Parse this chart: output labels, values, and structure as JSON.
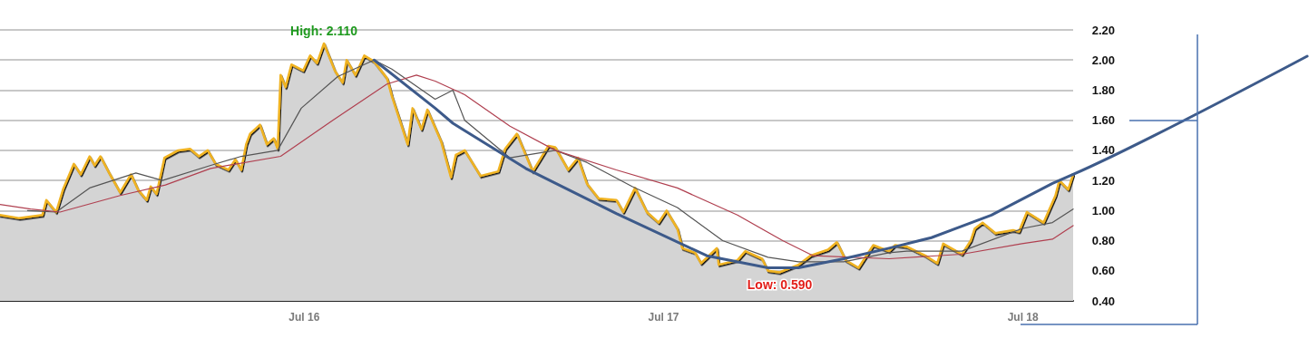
{
  "chart_data": {
    "type": "line",
    "xlim": [
      "2015-08-27",
      "2018-08-21"
    ],
    "xticks": [
      {
        "value": "2016-07-01",
        "label": "Jul 16"
      },
      {
        "value": "2017-07-01",
        "label": "Jul 17"
      },
      {
        "value": "2018-07-01",
        "label": "Jul 18"
      }
    ],
    "ylim": [
      0.4,
      2.2
    ],
    "yticks": [
      {
        "value": 0.4,
        "label": "0.40"
      },
      {
        "value": 0.6,
        "label": "0.60"
      },
      {
        "value": 0.8,
        "label": "0.80"
      },
      {
        "value": 1.0,
        "label": "1.00"
      },
      {
        "value": 1.2,
        "label": "1.20"
      },
      {
        "value": 1.4,
        "label": "1.40"
      },
      {
        "value": 1.6,
        "label": "1.60"
      },
      {
        "value": 1.8,
        "label": "1.80"
      },
      {
        "value": 2.0,
        "label": "2.00"
      },
      {
        "value": 2.2,
        "label": "2.20"
      }
    ],
    "grid": "y",
    "marker": "none",
    "line_style": "solid",
    "annotations": [
      {
        "text": "High: 2.110",
        "x": "2016-07-21",
        "y": 2.11
      },
      {
        "text": "Low: 0.590",
        "x": "2017-10-27",
        "y": 0.59
      }
    ],
    "series": [
      {
        "type": "area",
        "color": "#f0b323",
        "x": [
          "2015-08-27",
          "2015-09-15",
          "2015-10-09",
          "2015-10-13",
          "2015-10-23",
          "2015-10-30",
          "2015-11-10",
          "2015-11-17",
          "2015-11-26",
          "2015-12-01",
          "2015-12-07",
          "2015-12-15",
          "2015-12-27",
          "2016-01-07",
          "2016-01-14",
          "2016-01-23",
          "2016-01-27",
          "2016-02-02",
          "2016-02-10",
          "2016-02-24",
          "2016-03-07",
          "2016-03-16",
          "2016-03-25",
          "2016-04-02",
          "2016-04-15",
          "2016-04-22",
          "2016-04-28",
          "2016-05-03",
          "2016-05-07",
          "2016-05-17",
          "2016-05-24",
          "2016-05-31",
          "2016-06-04",
          "2016-06-07",
          "2016-06-12",
          "2016-06-18",
          "2016-06-30",
          "2016-07-07",
          "2016-07-14",
          "2016-07-21",
          "2016-08-01",
          "2016-08-09",
          "2016-08-13",
          "2016-08-22",
          "2016-08-31",
          "2016-09-10",
          "2016-09-23",
          "2016-09-28",
          "2016-10-14",
          "2016-10-19",
          "2016-10-28",
          "2016-11-03",
          "2016-11-17",
          "2016-11-27",
          "2016-12-02",
          "2016-12-11",
          "2016-12-27",
          "2017-01-14",
          "2017-01-21",
          "2017-02-02",
          "2017-02-18",
          "2017-03-06",
          "2017-03-13",
          "2017-03-26",
          "2017-04-05",
          "2017-04-14",
          "2017-04-26",
          "2017-05-14",
          "2017-05-21",
          "2017-06-02",
          "2017-06-14",
          "2017-06-26",
          "2017-07-04",
          "2017-07-15",
          "2017-07-20",
          "2017-08-02",
          "2017-08-08",
          "2017-08-24",
          "2017-08-26",
          "2017-09-14",
          "2017-09-22",
          "2017-10-09",
          "2017-10-15",
          "2017-10-27",
          "2017-11-15",
          "2017-11-27",
          "2017-12-15",
          "2017-12-24",
          "2018-01-02",
          "2018-01-15",
          "2018-01-30",
          "2018-02-15",
          "2018-02-21",
          "2018-03-05",
          "2018-03-24",
          "2018-04-05",
          "2018-04-11",
          "2018-04-30",
          "2018-05-09",
          "2018-05-13",
          "2018-05-21",
          "2018-06-03",
          "2018-06-21",
          "2018-06-27",
          "2018-07-05",
          "2018-07-22",
          "2018-08-03",
          "2018-08-07",
          "2018-08-16",
          "2018-08-21"
        ],
        "values": [
          0.97,
          0.95,
          0.97,
          1.07,
          0.99,
          1.14,
          1.31,
          1.24,
          1.36,
          1.3,
          1.36,
          1.26,
          1.12,
          1.24,
          1.14,
          1.07,
          1.16,
          1.11,
          1.35,
          1.4,
          1.41,
          1.36,
          1.4,
          1.31,
          1.27,
          1.34,
          1.27,
          1.44,
          1.51,
          1.57,
          1.44,
          1.48,
          1.41,
          1.9,
          1.82,
          1.97,
          1.93,
          2.03,
          1.98,
          2.11,
          1.93,
          1.85,
          2.0,
          1.9,
          2.03,
          1.99,
          1.88,
          1.76,
          1.44,
          1.68,
          1.54,
          1.67,
          1.46,
          1.22,
          1.37,
          1.4,
          1.23,
          1.26,
          1.41,
          1.51,
          1.26,
          1.43,
          1.42,
          1.27,
          1.35,
          1.18,
          1.08,
          1.07,
          0.99,
          1.15,
          0.99,
          0.92,
          1.0,
          0.88,
          0.75,
          0.72,
          0.65,
          0.75,
          0.64,
          0.67,
          0.73,
          0.68,
          0.6,
          0.59,
          0.64,
          0.7,
          0.74,
          0.79,
          0.67,
          0.62,
          0.77,
          0.73,
          0.77,
          0.76,
          0.7,
          0.65,
          0.78,
          0.71,
          0.8,
          0.88,
          0.92,
          0.85,
          0.87,
          0.86,
          0.99,
          0.92,
          1.1,
          1.2,
          1.14,
          1.24
        ]
      },
      {
        "color": "#555555",
        "x": [
          "2015-09-24",
          "2015-10-23",
          "2015-11-26",
          "2016-01-12",
          "2016-02-08",
          "2016-03-28",
          "2016-04-28",
          "2016-06-04",
          "2016-06-28",
          "2016-08-04",
          "2016-09-10",
          "2016-09-28",
          "2016-11-11",
          "2016-11-29",
          "2016-12-11",
          "2017-01-26",
          "2017-03-13",
          "2017-04-14",
          "2017-05-30",
          "2017-07-15",
          "2017-08-30",
          "2017-10-15",
          "2017-11-15",
          "2017-12-31",
          "2018-02-15",
          "2018-03-05",
          "2018-04-30",
          "2018-06-30",
          "2018-07-31",
          "2018-08-21"
        ],
        "values": [
          1.0,
          0.99,
          1.15,
          1.25,
          1.2,
          1.3,
          1.36,
          1.4,
          1.68,
          1.89,
          2.0,
          1.94,
          1.74,
          1.8,
          1.6,
          1.35,
          1.4,
          1.32,
          1.16,
          1.02,
          0.8,
          0.69,
          0.66,
          0.66,
          0.72,
          0.73,
          0.73,
          0.88,
          0.92,
          1.01
        ]
      },
      {
        "color": "#b04050",
        "x": [
          "2015-08-27",
          "2015-09-27",
          "2015-10-27",
          "2015-12-27",
          "2016-02-11",
          "2016-03-28",
          "2016-06-07",
          "2016-07-30",
          "2016-09-23",
          "2016-10-23",
          "2016-11-11",
          "2016-12-11",
          "2017-01-26",
          "2017-03-13",
          "2017-05-14",
          "2017-07-15",
          "2017-09-14",
          "2017-10-30",
          "2017-11-30",
          "2018-02-15",
          "2018-04-30",
          "2018-06-30",
          "2018-07-31",
          "2018-08-21"
        ],
        "values": [
          1.04,
          1.01,
          0.99,
          1.1,
          1.17,
          1.28,
          1.36,
          1.6,
          1.84,
          1.9,
          1.86,
          1.77,
          1.56,
          1.4,
          1.27,
          1.15,
          0.97,
          0.8,
          0.7,
          0.68,
          0.71,
          0.78,
          0.81,
          0.9
        ]
      },
      {
        "color": "#3d5a8a",
        "x": [
          "2016-09-10",
          "2016-11-11",
          "2016-11-29",
          "2017-02-11",
          "2017-05-14",
          "2017-08-14",
          "2017-10-15",
          "2017-11-15",
          "2017-12-31",
          "2018-02-15",
          "2018-03-30",
          "2018-05-30",
          "2018-07-31",
          "2018-08-21"
        ],
        "values": [
          2.0,
          1.68,
          1.58,
          1.28,
          0.98,
          0.7,
          0.62,
          0.62,
          0.68,
          0.75,
          0.82,
          0.97,
          1.18,
          1.24
        ]
      }
    ]
  }
}
